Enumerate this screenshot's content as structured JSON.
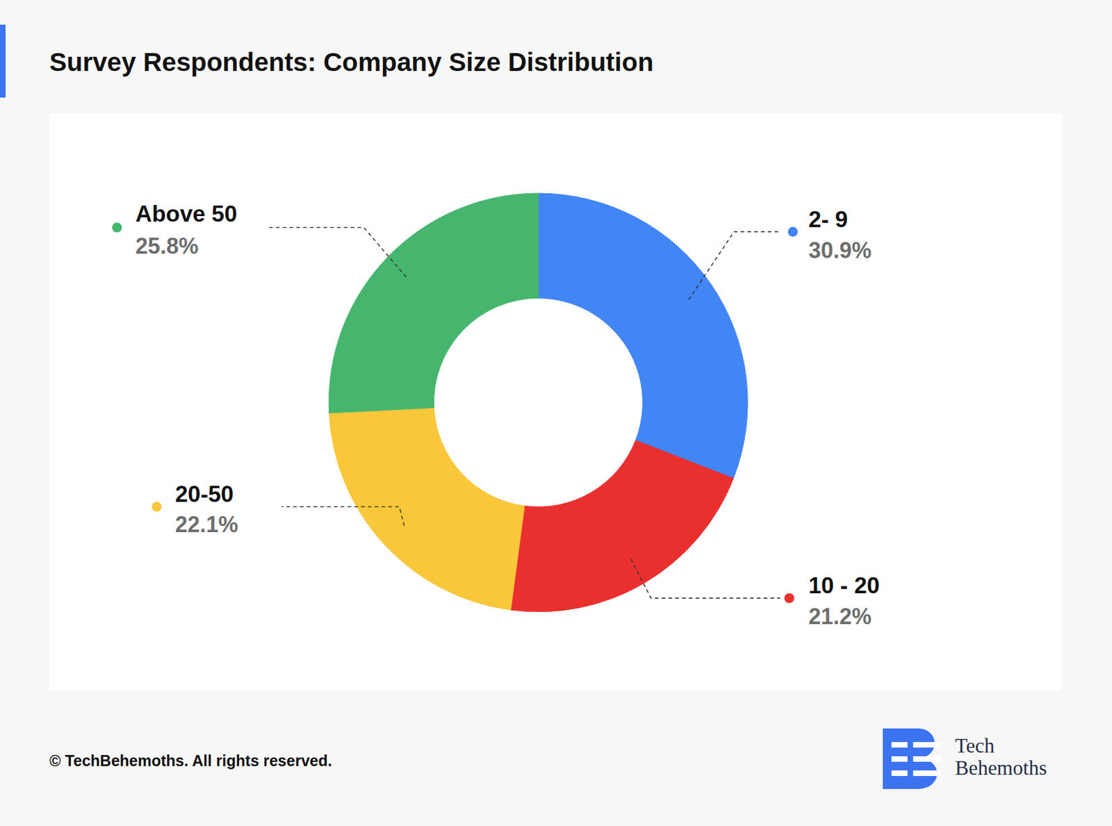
{
  "chart_data": {
    "type": "pie",
    "title": "Survey Respondents: Company Size Distribution",
    "categories": [
      "2- 9",
      "10 - 20",
      "20-50",
      "Above 50"
    ],
    "values": [
      30.9,
      21.2,
      22.1,
      25.8
    ],
    "value_labels": [
      "30.9%",
      "21.2%",
      "22.1%",
      "25.8%"
    ],
    "colors": [
      "#4285f4",
      "#ea2f2f",
      "#f9c739",
      "#46b66f"
    ]
  },
  "footer": "© TechBehemoths. All rights reserved.",
  "brand": [
    "Tech",
    "Behemoths"
  ]
}
